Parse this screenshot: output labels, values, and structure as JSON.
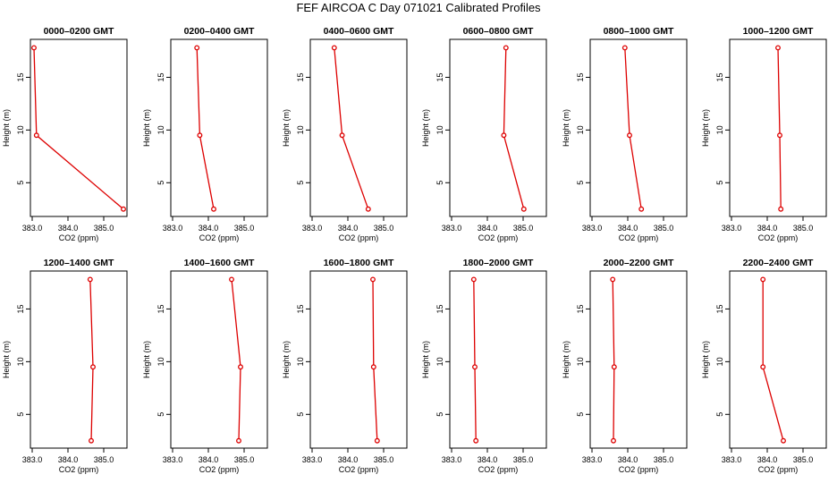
{
  "figure": {
    "title": "FEF AIRCOA C  Day 071021  Calibrated Profiles"
  },
  "chart_data": [
    {
      "type": "line",
      "title": "0000–0200 GMT",
      "xlabel": "CO2 (ppm)",
      "ylabel": "Height (m)",
      "x": [
        385.55,
        383.12,
        383.05
      ],
      "y": [
        2.5,
        9.5,
        17.8
      ],
      "xlim": [
        382.95,
        385.65
      ],
      "ylim": [
        1.8,
        18.6
      ],
      "xticks": [
        383,
        384,
        385
      ],
      "xtick_labels": [
        "383.0",
        "384.0",
        "385.0"
      ],
      "yticks": [
        5,
        10,
        15
      ],
      "ytick_labels": [
        "5",
        "10",
        "15"
      ]
    },
    {
      "type": "line",
      "title": "0200–0400 GMT",
      "xlabel": "CO2 (ppm)",
      "ylabel": "Height (m)",
      "x": [
        384.15,
        383.76,
        383.68
      ],
      "y": [
        2.5,
        9.5,
        17.8
      ],
      "xlim": [
        382.95,
        385.65
      ],
      "ylim": [
        1.8,
        18.6
      ],
      "xticks": [
        383,
        384,
        385
      ],
      "xtick_labels": [
        "383.0",
        "384.0",
        "385.0"
      ],
      "yticks": [
        5,
        10,
        15
      ],
      "ytick_labels": [
        "5",
        "10",
        "15"
      ]
    },
    {
      "type": "line",
      "title": "0400–0600 GMT",
      "xlabel": "CO2 (ppm)",
      "ylabel": "Height (m)",
      "x": [
        384.57,
        383.84,
        383.62
      ],
      "y": [
        2.5,
        9.5,
        17.8
      ],
      "xlim": [
        382.95,
        385.65
      ],
      "ylim": [
        1.8,
        18.6
      ],
      "xticks": [
        383,
        384,
        385
      ],
      "xtick_labels": [
        "383.0",
        "384.0",
        "385.0"
      ],
      "yticks": [
        5,
        10,
        15
      ],
      "ytick_labels": [
        "5",
        "10",
        "15"
      ]
    },
    {
      "type": "line",
      "title": "0600–0800 GMT",
      "xlabel": "CO2 (ppm)",
      "ylabel": "Height (m)",
      "x": [
        385.02,
        384.46,
        384.52
      ],
      "y": [
        2.5,
        9.5,
        17.8
      ],
      "xlim": [
        382.95,
        385.65
      ],
      "ylim": [
        1.8,
        18.6
      ],
      "xticks": [
        383,
        384,
        385
      ],
      "xtick_labels": [
        "383.0",
        "384.0",
        "385.0"
      ],
      "yticks": [
        5,
        10,
        15
      ],
      "ytick_labels": [
        "5",
        "10",
        "15"
      ]
    },
    {
      "type": "line",
      "title": "0800–1000 GMT",
      "xlabel": "CO2 (ppm)",
      "ylabel": "Height (m)",
      "x": [
        384.38,
        384.05,
        383.92
      ],
      "y": [
        2.5,
        9.5,
        17.8
      ],
      "xlim": [
        382.95,
        385.65
      ],
      "ylim": [
        1.8,
        18.6
      ],
      "xticks": [
        383,
        384,
        385
      ],
      "xtick_labels": [
        "383.0",
        "384.0",
        "385.0"
      ],
      "yticks": [
        5,
        10,
        15
      ],
      "ytick_labels": [
        "5",
        "10",
        "15"
      ]
    },
    {
      "type": "line",
      "title": "1000–1200 GMT",
      "xlabel": "CO2 (ppm)",
      "ylabel": "Height (m)",
      "x": [
        384.38,
        384.35,
        384.3
      ],
      "y": [
        2.5,
        9.5,
        17.8
      ],
      "xlim": [
        382.95,
        385.65
      ],
      "ylim": [
        1.8,
        18.6
      ],
      "xticks": [
        383,
        384,
        385
      ],
      "xtick_labels": [
        "383.0",
        "384.0",
        "385.0"
      ],
      "yticks": [
        5,
        10,
        15
      ],
      "ytick_labels": [
        "5",
        "10",
        "15"
      ]
    },
    {
      "type": "line",
      "title": "1200–1400 GMT",
      "xlabel": "CO2 (ppm)",
      "ylabel": "Height (m)",
      "x": [
        384.65,
        384.7,
        384.62
      ],
      "y": [
        2.5,
        9.5,
        17.8
      ],
      "xlim": [
        382.95,
        385.65
      ],
      "ylim": [
        1.8,
        18.6
      ],
      "xticks": [
        383,
        384,
        385
      ],
      "xtick_labels": [
        "383.0",
        "384.0",
        "385.0"
      ],
      "yticks": [
        5,
        10,
        15
      ],
      "ytick_labels": [
        "5",
        "10",
        "15"
      ]
    },
    {
      "type": "line",
      "title": "1400–1600 GMT",
      "xlabel": "CO2 (ppm)",
      "ylabel": "Height (m)",
      "x": [
        384.85,
        384.9,
        384.65
      ],
      "y": [
        2.5,
        9.5,
        17.8
      ],
      "xlim": [
        382.95,
        385.65
      ],
      "ylim": [
        1.8,
        18.6
      ],
      "xticks": [
        383,
        384,
        385
      ],
      "xtick_labels": [
        "383.0",
        "384.0",
        "385.0"
      ],
      "yticks": [
        5,
        10,
        15
      ],
      "ytick_labels": [
        "5",
        "10",
        "15"
      ]
    },
    {
      "type": "line",
      "title": "1600–1800 GMT",
      "xlabel": "CO2 (ppm)",
      "ylabel": "Height (m)",
      "x": [
        384.82,
        384.72,
        384.7
      ],
      "y": [
        2.5,
        9.5,
        17.8
      ],
      "xlim": [
        382.95,
        385.65
      ],
      "ylim": [
        1.8,
        18.6
      ],
      "xticks": [
        383,
        384,
        385
      ],
      "xtick_labels": [
        "383.0",
        "384.0",
        "385.0"
      ],
      "yticks": [
        5,
        10,
        15
      ],
      "ytick_labels": [
        "5",
        "10",
        "15"
      ]
    },
    {
      "type": "line",
      "title": "1800–2000 GMT",
      "xlabel": "CO2 (ppm)",
      "ylabel": "Height (m)",
      "x": [
        383.68,
        383.65,
        383.62
      ],
      "y": [
        2.5,
        9.5,
        17.8
      ],
      "xlim": [
        382.95,
        385.65
      ],
      "ylim": [
        1.8,
        18.6
      ],
      "xticks": [
        383,
        384,
        385
      ],
      "xtick_labels": [
        "383.0",
        "384.0",
        "385.0"
      ],
      "yticks": [
        5,
        10,
        15
      ],
      "ytick_labels": [
        "5",
        "10",
        "15"
      ]
    },
    {
      "type": "line",
      "title": "2000–2200 GMT",
      "xlabel": "CO2 (ppm)",
      "ylabel": "Height (m)",
      "x": [
        383.6,
        383.62,
        383.58
      ],
      "y": [
        2.5,
        9.5,
        17.8
      ],
      "xlim": [
        382.95,
        385.65
      ],
      "ylim": [
        1.8,
        18.6
      ],
      "xticks": [
        383,
        384,
        385
      ],
      "xtick_labels": [
        "383.0",
        "384.0",
        "385.0"
      ],
      "yticks": [
        5,
        10,
        15
      ],
      "ytick_labels": [
        "5",
        "10",
        "15"
      ]
    },
    {
      "type": "line",
      "title": "2200–2400 GMT",
      "xlabel": "CO2 (ppm)",
      "ylabel": "Height (m)",
      "x": [
        384.45,
        383.88,
        383.88
      ],
      "y": [
        2.5,
        9.5,
        17.8
      ],
      "xlim": [
        382.95,
        385.65
      ],
      "ylim": [
        1.8,
        18.6
      ],
      "xticks": [
        383,
        384,
        385
      ],
      "xtick_labels": [
        "383.0",
        "384.0",
        "385.0"
      ],
      "yticks": [
        5,
        10,
        15
      ],
      "ytick_labels": [
        "5",
        "10",
        "15"
      ]
    }
  ],
  "style": {
    "line_color": "#dd0000",
    "axis_color": "#000000"
  }
}
